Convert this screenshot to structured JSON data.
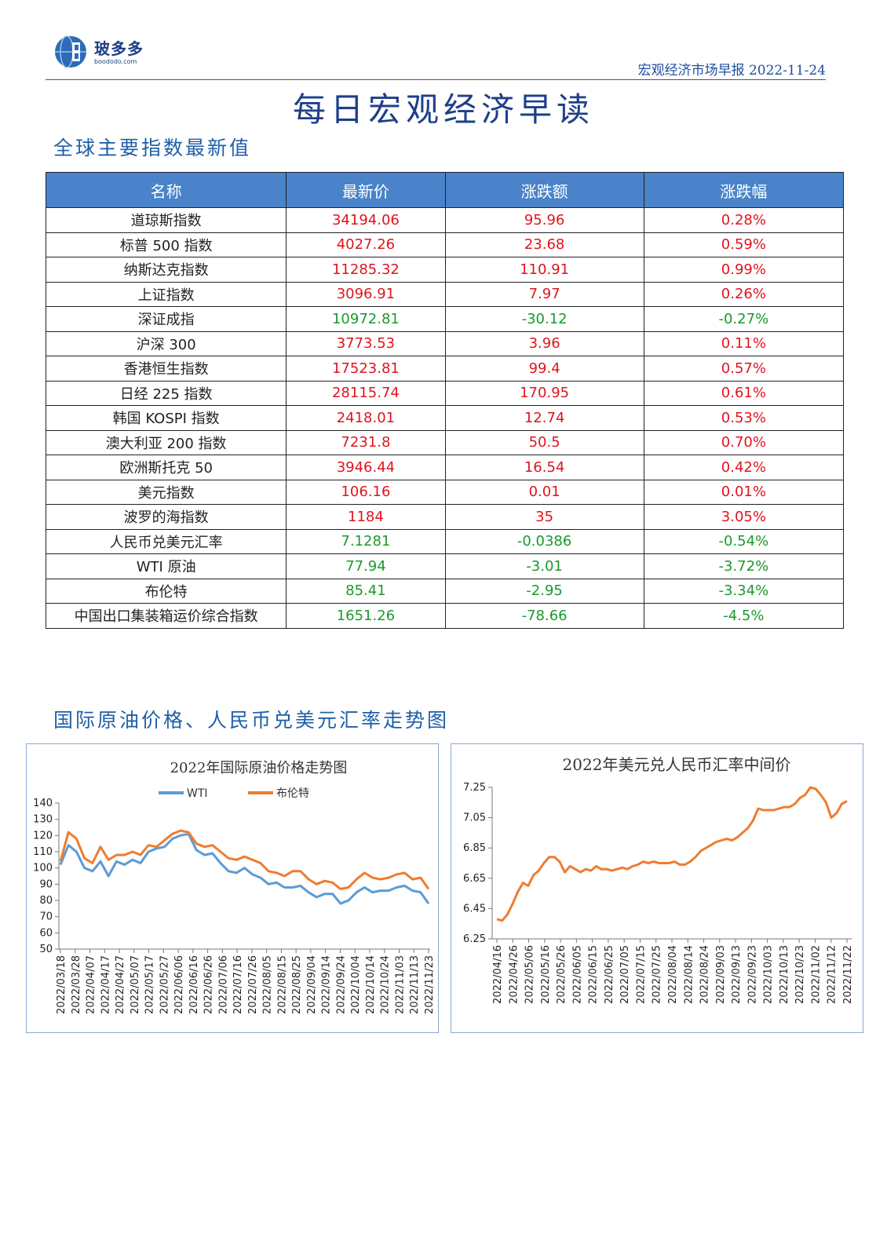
{
  "header": {
    "logo_name": "玻多多",
    "logo_url": "boododo.com",
    "report_line": "宏观经济市场早报 2022-11-24"
  },
  "main_title": "每日宏观经济早读",
  "sections": {
    "indices_title": "全球主要指数最新值",
    "charts_title": "国际原油价格、人民币兑美元汇率走势图"
  },
  "table": {
    "headers": [
      "名称",
      "最新价",
      "涨跌额",
      "涨跌幅"
    ],
    "rows": [
      {
        "name": "道琼斯指数",
        "price": "34194.06",
        "change": "95.96",
        "pct": "0.28%",
        "dir": "up"
      },
      {
        "name": "标普 500 指数",
        "price": "4027.26",
        "change": "23.68",
        "pct": "0.59%",
        "dir": "up"
      },
      {
        "name": "纳斯达克指数",
        "price": "11285.32",
        "change": "110.91",
        "pct": "0.99%",
        "dir": "up"
      },
      {
        "name": "上证指数",
        "price": "3096.91",
        "change": "7.97",
        "pct": "0.26%",
        "dir": "up"
      },
      {
        "name": "深证成指",
        "price": "10972.81",
        "change": "-30.12",
        "pct": "-0.27%",
        "dir": "down"
      },
      {
        "name": "沪深 300",
        "price": "3773.53",
        "change": "3.96",
        "pct": "0.11%",
        "dir": "up"
      },
      {
        "name": "香港恒生指数",
        "price": "17523.81",
        "change": "99.4",
        "pct": "0.57%",
        "dir": "up"
      },
      {
        "name": "日经 225 指数",
        "price": "28115.74",
        "change": "170.95",
        "pct": "0.61%",
        "dir": "up"
      },
      {
        "name": "韩国 KOSPI 指数",
        "price": "2418.01",
        "change": "12.74",
        "pct": "0.53%",
        "dir": "up"
      },
      {
        "name": "澳大利亚 200 指数",
        "price": "7231.8",
        "change": "50.5",
        "pct": "0.70%",
        "dir": "up"
      },
      {
        "name": "欧洲斯托克 50",
        "price": "3946.44",
        "change": "16.54",
        "pct": "0.42%",
        "dir": "up"
      },
      {
        "name": "美元指数",
        "price": "106.16",
        "change": "0.01",
        "pct": "0.01%",
        "dir": "up"
      },
      {
        "name": "波罗的海指数",
        "price": "1184",
        "change": "35",
        "pct": "3.05%",
        "dir": "up"
      },
      {
        "name": "人民币兑美元汇率",
        "price": "7.1281",
        "change": "-0.0386",
        "pct": "-0.54%",
        "dir": "down"
      },
      {
        "name": "WTI 原油",
        "price": "77.94",
        "change": "-3.01",
        "pct": "-3.72%",
        "dir": "down"
      },
      {
        "name": "布伦特",
        "price": "85.41",
        "change": "-2.95",
        "pct": "-3.34%",
        "dir": "down"
      },
      {
        "name": "中国出口集装箱运价综合指数",
        "price": "1651.26",
        "change": "-78.66",
        "pct": "-4.5%",
        "dir": "down"
      }
    ]
  },
  "colors": {
    "up": "#e0141e",
    "down": "#1a9a2a",
    "header_fill": "#4a83c9",
    "wti": "#5b9bd5",
    "brent": "#ed7d31",
    "cny": "#ed7d31"
  },
  "chart_data": [
    {
      "type": "line",
      "title": "2022年国际原油价格走势图",
      "ylim": [
        50,
        140
      ],
      "yticks": [
        "140",
        "130",
        "120",
        "110",
        "100",
        "90",
        "80",
        "70",
        "60",
        "50"
      ],
      "xticks": [
        "2022/03/18",
        "2022/03/28",
        "2022/04/07",
        "2022/04/17",
        "2022/04/27",
        "2022/05/07",
        "2022/05/17",
        "2022/05/27",
        "2022/06/06",
        "2022/06/16",
        "2022/06/26",
        "2022/07/06",
        "2022/07/16",
        "2022/07/26",
        "2022/08/05",
        "2022/08/15",
        "2022/08/25",
        "2022/09/04",
        "2022/09/14",
        "2022/09/24",
        "2022/10/04",
        "2022/10/14",
        "2022/10/24",
        "2022/11/03",
        "2022/11/13",
        "2022/11/23"
      ],
      "series": [
        {
          "name": "WTI",
          "color": "#5b9bd5",
          "values": [
            102,
            114,
            110,
            100,
            98,
            104,
            95,
            104,
            102,
            105,
            103,
            110,
            112,
            113,
            118,
            120,
            121,
            111,
            108,
            109,
            103,
            98,
            97,
            100,
            96,
            94,
            90,
            91,
            88,
            88,
            89,
            85,
            82,
            84,
            84,
            78,
            80,
            85,
            88,
            85,
            86,
            86,
            88,
            89,
            86,
            85,
            78
          ]
        },
        {
          "name": "布伦特",
          "color": "#ed7d31",
          "values": [
            104,
            122,
            118,
            106,
            103,
            113,
            105,
            108,
            108,
            110,
            108,
            114,
            113,
            117,
            121,
            123,
            122,
            115,
            113,
            114,
            110,
            106,
            105,
            107,
            105,
            103,
            98,
            97,
            95,
            98,
            98,
            93,
            90,
            92,
            91,
            87,
            88,
            93,
            97,
            94,
            93,
            94,
            96,
            97,
            93,
            94,
            87
          ]
        }
      ]
    },
    {
      "type": "line",
      "title": "2022年美元兑人民币汇率中间价",
      "ylim": [
        6.25,
        7.25
      ],
      "yticks": [
        "7.25",
        "7.05",
        "6.85",
        "6.65",
        "6.45",
        "6.25"
      ],
      "xticks": [
        "2022/04/16",
        "2022/04/26",
        "2022/05/06",
        "2022/05/16",
        "2022/05/26",
        "2022/06/05",
        "2022/06/15",
        "2022/06/25",
        "2022/07/05",
        "2022/07/15",
        "2022/07/25",
        "2022/08/04",
        "2022/08/14",
        "2022/08/24",
        "2022/09/03",
        "2022/09/13",
        "2022/09/23",
        "2022/10/03",
        "2022/10/13",
        "2022/10/23",
        "2022/11/02",
        "2022/11/12",
        "2022/11/22"
      ],
      "series": [
        {
          "name": "",
          "color": "#ed7d31",
          "values": [
            6.38,
            6.37,
            6.41,
            6.48,
            6.56,
            6.62,
            6.6,
            6.67,
            6.7,
            6.75,
            6.79,
            6.79,
            6.76,
            6.69,
            6.73,
            6.71,
            6.69,
            6.71,
            6.7,
            6.73,
            6.71,
            6.71,
            6.7,
            6.71,
            6.72,
            6.71,
            6.73,
            6.74,
            6.76,
            6.75,
            6.76,
            6.75,
            6.75,
            6.75,
            6.76,
            6.74,
            6.74,
            6.76,
            6.79,
            6.83,
            6.85,
            6.87,
            6.89,
            6.9,
            6.91,
            6.9,
            6.92,
            6.95,
            6.98,
            7.03,
            7.11,
            7.1,
            7.1,
            7.1,
            7.11,
            7.12,
            7.12,
            7.14,
            7.18,
            7.2,
            7.25,
            7.24,
            7.2,
            7.15,
            7.05,
            7.08,
            7.14,
            7.16
          ]
        }
      ]
    }
  ]
}
